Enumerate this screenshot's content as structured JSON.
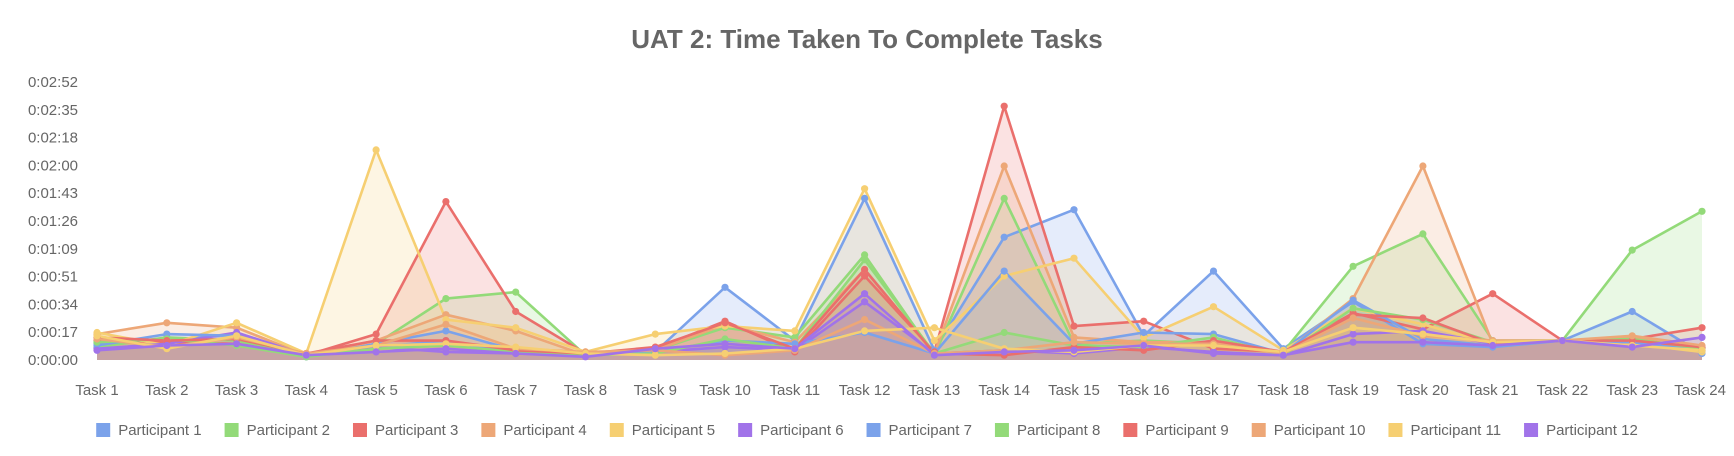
{
  "chart_data": {
    "type": "area",
    "title": "UAT 2: Time Taken To Complete Tasks",
    "xlabel": "",
    "ylabel": "",
    "categories": [
      "Task 1",
      "Task 2",
      "Task 3",
      "Task 4",
      "Task 5",
      "Task 6",
      "Task 7",
      "Task 8",
      "Task 9",
      "Task 10",
      "Task 11",
      "Task 12",
      "Task 13",
      "Task 14",
      "Task 15",
      "Task 16",
      "Task 17",
      "Task 18",
      "Task 19",
      "Task 20",
      "Task 21",
      "Task 22",
      "Task 23",
      "Task 24"
    ],
    "y_ticks": [
      "0:00:00",
      "0:00:17",
      "0:00:34",
      "0:00:51",
      "0:01:09",
      "0:01:26",
      "0:01:43",
      "0:02:00",
      "0:02:18",
      "0:02:35",
      "0:02:52"
    ],
    "y_unit": "seconds",
    "ylim": [
      0,
      172
    ],
    "grid": true,
    "legend_position": "bottom",
    "series": [
      {
        "name": "Participant 1",
        "color": "#7ba2ea",
        "values": [
          10,
          12,
          16,
          3,
          8,
          12,
          4,
          3,
          5,
          45,
          12,
          100,
          6,
          76,
          93,
          15,
          55,
          7,
          36,
          10,
          8,
          12,
          30,
          4
        ]
      },
      {
        "name": "Participant 2",
        "color": "#93da79",
        "values": [
          8,
          14,
          12,
          2,
          10,
          38,
          42,
          3,
          6,
          20,
          14,
          65,
          3,
          100,
          10,
          12,
          10,
          5,
          58,
          78,
          12,
          12,
          68,
          92
        ]
      },
      {
        "name": "Participant 3",
        "color": "#ea6f6c",
        "values": [
          12,
          11,
          10,
          3,
          16,
          98,
          30,
          4,
          7,
          24,
          5,
          52,
          5,
          157,
          21,
          24,
          7,
          5,
          29,
          19,
          41,
          12,
          13,
          20
        ]
      },
      {
        "name": "Participant 4",
        "color": "#eda777",
        "values": [
          16,
          23,
          20,
          3,
          12,
          28,
          18,
          3,
          6,
          22,
          11,
          56,
          4,
          120,
          14,
          11,
          11,
          4,
          38,
          120,
          10,
          12,
          14,
          6
        ]
      },
      {
        "name": "Participant 5",
        "color": "#f6cf72",
        "values": [
          17,
          9,
          23,
          4,
          130,
          25,
          20,
          5,
          16,
          21,
          18,
          106,
          12,
          52,
          63,
          14,
          33,
          6,
          32,
          22,
          10,
          12,
          10,
          5
        ]
      },
      {
        "name": "Participant 6",
        "color": "#a173e9",
        "values": [
          7,
          10,
          17,
          3,
          8,
          5,
          4,
          3,
          5,
          8,
          6,
          36,
          4,
          6,
          4,
          8,
          5,
          3,
          16,
          18,
          10,
          12,
          11,
          8
        ]
      },
      {
        "name": "Participant 7",
        "color": "#7ba2ea",
        "values": [
          9,
          16,
          15,
          2,
          10,
          18,
          6,
          3,
          5,
          12,
          10,
          17,
          4,
          55,
          10,
          17,
          16,
          4,
          37,
          13,
          9,
          12,
          11,
          6
        ]
      },
      {
        "name": "Participant 8",
        "color": "#93da79",
        "values": [
          11,
          13,
          9,
          2,
          7,
          9,
          5,
          3,
          4,
          13,
          7,
          62,
          4,
          17,
          9,
          8,
          14,
          3,
          32,
          25,
          11,
          12,
          13,
          7
        ]
      },
      {
        "name": "Participant 9",
        "color": "#ea6f6c",
        "values": [
          14,
          12,
          13,
          4,
          12,
          12,
          6,
          4,
          8,
          23,
          7,
          56,
          4,
          3,
          8,
          6,
          12,
          5,
          28,
          26,
          10,
          12,
          12,
          8
        ]
      },
      {
        "name": "Participant 10",
        "color": "#eda777",
        "values": [
          13,
          8,
          14,
          4,
          9,
          22,
          7,
          5,
          6,
          3,
          6,
          25,
          4,
          6,
          11,
          10,
          10,
          4,
          26,
          15,
          12,
          12,
          15,
          9
        ]
      },
      {
        "name": "Participant 11",
        "color": "#f6cf72",
        "values": [
          15,
          7,
          15,
          3,
          9,
          10,
          8,
          4,
          3,
          4,
          7,
          18,
          20,
          7,
          5,
          9,
          9,
          5,
          20,
          16,
          11,
          12,
          9,
          6
        ]
      },
      {
        "name": "Participant 12",
        "color": "#a173e9",
        "values": [
          6,
          9,
          10,
          3,
          5,
          7,
          4,
          2,
          7,
          10,
          7,
          41,
          3,
          5,
          6,
          9,
          4,
          3,
          11,
          11,
          9,
          12,
          8,
          14
        ]
      }
    ]
  }
}
